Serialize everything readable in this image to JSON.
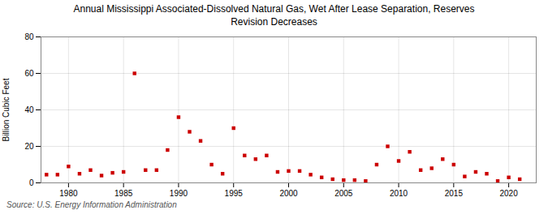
{
  "chart_data": {
    "type": "scatter",
    "title": "Annual Mississippi Associated-Dissolved Natural Gas, Wet After Lease Separation, Reserves\nRevision Decreases",
    "ylabel": "Billion Cubic Feet",
    "annotations": [
      "Source: U.S. Energy Information Administration"
    ],
    "x": [
      1978,
      1979,
      1980,
      1981,
      1982,
      1983,
      1984,
      1985,
      1986,
      1987,
      1988,
      1989,
      1990,
      1991,
      1992,
      1993,
      1994,
      1995,
      1996,
      1997,
      1998,
      1999,
      2000,
      2001,
      2002,
      2003,
      2004,
      2005,
      2006,
      2007,
      2008,
      2009,
      2010,
      2011,
      2012,
      2013,
      2014,
      2015,
      2016,
      2017,
      2018,
      2019,
      2020,
      2021
    ],
    "values": [
      4.5,
      4.5,
      9.0,
      5.0,
      7.0,
      4.0,
      5.5,
      6.0,
      60.0,
      7.0,
      7.0,
      18.0,
      36.0,
      28.0,
      23.0,
      10.0,
      5.0,
      30.0,
      15.0,
      13.0,
      15.0,
      6.0,
      6.5,
      6.5,
      4.5,
      3.0,
      2.0,
      1.5,
      1.5,
      1.0,
      10.0,
      20.0,
      12.0,
      17.0,
      7.0,
      8.0,
      13.0,
      10.0,
      3.5,
      6.0,
      5.0,
      1.0,
      3.0,
      2.0
    ],
    "color": "#cc0000",
    "marker": "square",
    "xlim": [
      1977.5,
      2022.5
    ],
    "xticks": [
      1980,
      1985,
      1990,
      1995,
      2000,
      2005,
      2010,
      2015,
      2020
    ],
    "ylim": [
      0,
      80
    ],
    "yticks": [
      0,
      20,
      40,
      60,
      80
    ],
    "grid": true
  }
}
